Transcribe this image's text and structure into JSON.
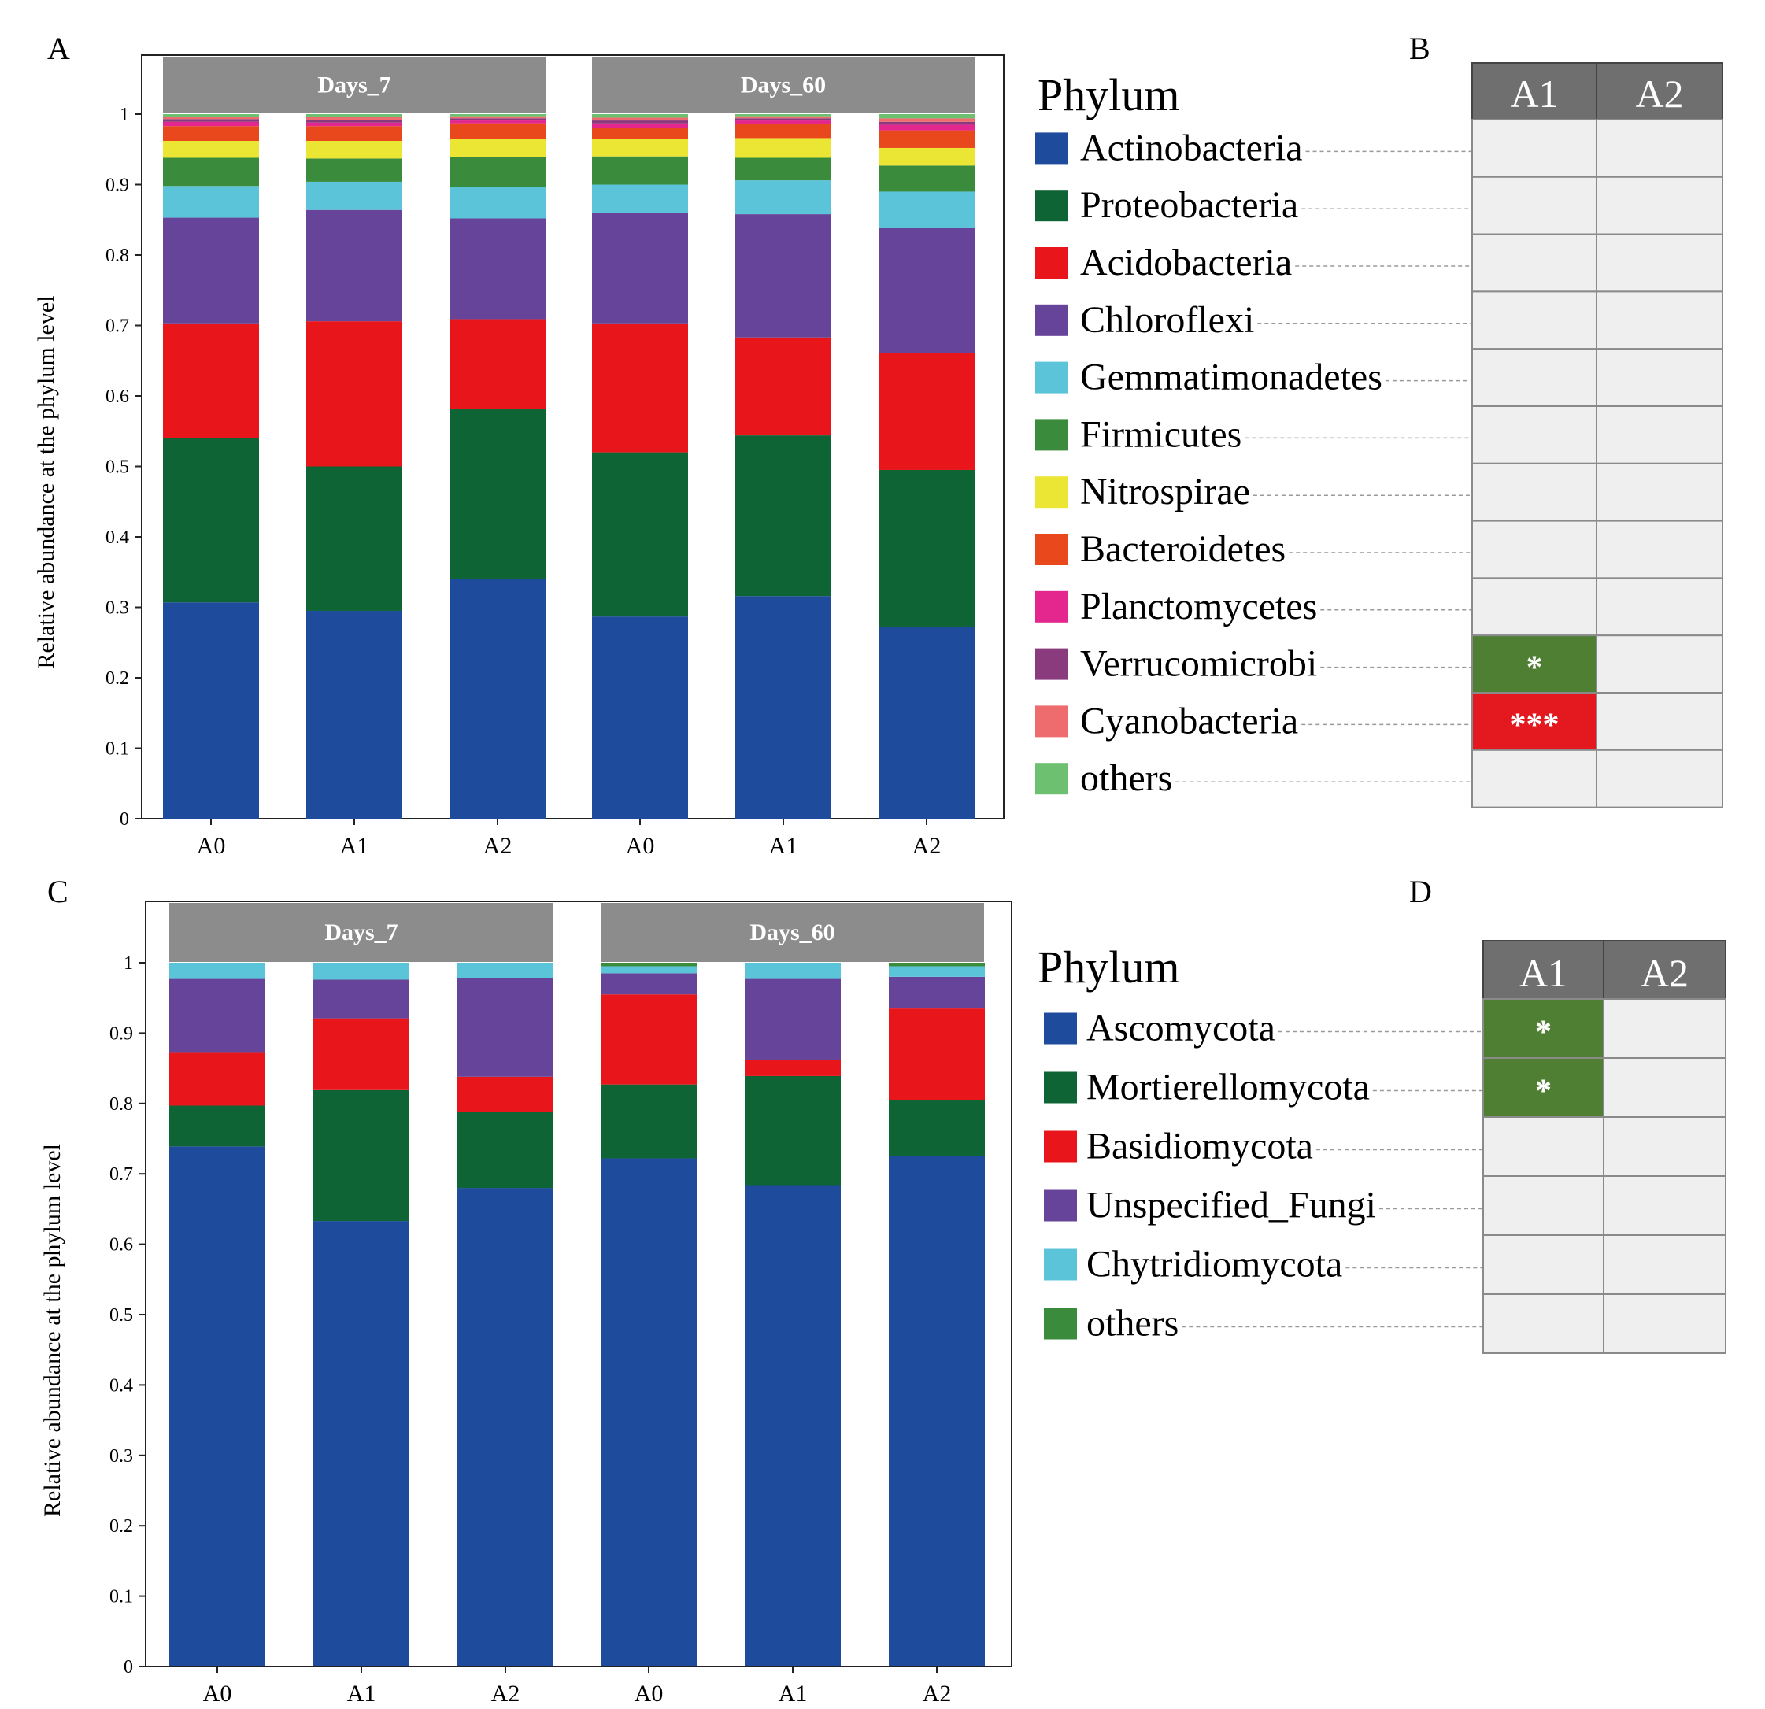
{
  "chart_data": [
    {
      "panel": "A",
      "type": "bar",
      "stacked": true,
      "ylabel": "Relative abundance at the phylum level",
      "ylim": [
        0,
        1
      ],
      "yticks": [
        "0",
        "0.1",
        "0.2",
        "0.3",
        "0.4",
        "0.5",
        "0.6",
        "0.7",
        "0.8",
        "0.9",
        "1"
      ],
      "groups": [
        "Days_7",
        "Days_60"
      ],
      "categories": [
        "A0",
        "A1",
        "A2",
        "A0",
        "A1",
        "A2"
      ],
      "series": [
        {
          "name": "Actinobacteria",
          "color": "#1f4b9c",
          "values": [
            0.307,
            0.295,
            0.34,
            0.287,
            0.316,
            0.272
          ]
        },
        {
          "name": "Proteobacteria",
          "color": "#0f6436",
          "values": [
            0.233,
            0.205,
            0.241,
            0.233,
            0.228,
            0.223
          ]
        },
        {
          "name": "Acidobacteria",
          "color": "#e8161b",
          "values": [
            0.163,
            0.206,
            0.128,
            0.183,
            0.139,
            0.166
          ]
        },
        {
          "name": "Chloroflexi",
          "color": "#66449a",
          "values": [
            0.15,
            0.158,
            0.143,
            0.157,
            0.175,
            0.177
          ]
        },
        {
          "name": "Gemmatimonadetes",
          "color": "#5cc4d8",
          "values": [
            0.045,
            0.04,
            0.045,
            0.04,
            0.048,
            0.052
          ]
        },
        {
          "name": "Firmicutes",
          "color": "#3a8c3c",
          "values": [
            0.04,
            0.033,
            0.042,
            0.04,
            0.032,
            0.037
          ]
        },
        {
          "name": "Nitrospirae",
          "color": "#ebe633",
          "values": [
            0.024,
            0.025,
            0.026,
            0.025,
            0.028,
            0.025
          ]
        },
        {
          "name": "Bacteroidetes",
          "color": "#e8481b",
          "values": [
            0.021,
            0.021,
            0.022,
            0.016,
            0.02,
            0.025
          ]
        },
        {
          "name": "Planctomycetes",
          "color": "#e3278f",
          "values": [
            0.006,
            0.005,
            0.004,
            0.006,
            0.005,
            0.008
          ]
        },
        {
          "name": "Verrucomicrobi",
          "color": "#8a3b7e",
          "values": [
            0.004,
            0.004,
            0.003,
            0.004,
            0.003,
            0.004
          ]
        },
        {
          "name": "Cyanobacteria",
          "color": "#ee6b6e",
          "values": [
            0.003,
            0.004,
            0.003,
            0.004,
            0.003,
            0.005
          ]
        },
        {
          "name": "others",
          "color": "#6cc070",
          "values": [
            0.004,
            0.004,
            0.003,
            0.005,
            0.003,
            0.006
          ]
        }
      ]
    },
    {
      "panel": "C",
      "type": "bar",
      "stacked": true,
      "ylabel": "Relative abundance at the phylum level",
      "ylim": [
        0,
        1
      ],
      "yticks": [
        "0",
        "0.1",
        "0.2",
        "0.3",
        "0.4",
        "0.5",
        "0.6",
        "0.7",
        "0.8",
        "0.9",
        "1"
      ],
      "groups": [
        "Days_7",
        "Days_60"
      ],
      "categories": [
        "A0",
        "A1",
        "A2",
        "A0",
        "A1",
        "A2"
      ],
      "series": [
        {
          "name": "Ascomycota",
          "color": "#1f4b9c",
          "values": [
            0.739,
            0.633,
            0.68,
            0.722,
            0.684,
            0.725
          ]
        },
        {
          "name": "Mortierellomycota",
          "color": "#0f6436",
          "values": [
            0.058,
            0.186,
            0.108,
            0.105,
            0.155,
            0.08
          ]
        },
        {
          "name": "Basidiomycota",
          "color": "#e8161b",
          "values": [
            0.075,
            0.102,
            0.05,
            0.128,
            0.023,
            0.13
          ]
        },
        {
          "name": "Unspecified_Fungi",
          "color": "#66449a",
          "values": [
            0.105,
            0.055,
            0.14,
            0.03,
            0.115,
            0.045
          ]
        },
        {
          "name": "Chytridiomycota",
          "color": "#5cc4d8",
          "values": [
            0.023,
            0.024,
            0.022,
            0.01,
            0.023,
            0.015
          ]
        },
        {
          "name": "others",
          "color": "#3a8c3c",
          "values": [
            0.0,
            0.0,
            0.0,
            0.005,
            0.0,
            0.005
          ]
        }
      ]
    }
  ],
  "panels": {
    "a_label": "A",
    "b_label": "B",
    "c_label": "C",
    "d_label": "D"
  },
  "legend_b": {
    "title": "Phylum",
    "columns": [
      "A1",
      "A2"
    ],
    "rows": [
      {
        "label": "Actinobacteria",
        "a1": "",
        "a2": "",
        "a1_color": "",
        "a2_color": ""
      },
      {
        "label": "Proteobacteria",
        "a1": "",
        "a2": "",
        "a1_color": "",
        "a2_color": ""
      },
      {
        "label": "Acidobacteria",
        "a1": "",
        "a2": "",
        "a1_color": "",
        "a2_color": ""
      },
      {
        "label": "Chloroflexi",
        "a1": "",
        "a2": "",
        "a1_color": "",
        "a2_color": ""
      },
      {
        "label": "Gemmatimonadetes",
        "a1": "",
        "a2": "",
        "a1_color": "",
        "a2_color": ""
      },
      {
        "label": "Firmicutes",
        "a1": "",
        "a2": "",
        "a1_color": "",
        "a2_color": ""
      },
      {
        "label": "Nitrospirae",
        "a1": "",
        "a2": "",
        "a1_color": "",
        "a2_color": ""
      },
      {
        "label": "Bacteroidetes",
        "a1": "",
        "a2": "",
        "a1_color": "",
        "a2_color": ""
      },
      {
        "label": "Planctomycetes",
        "a1": "",
        "a2": "",
        "a1_color": "",
        "a2_color": ""
      },
      {
        "label": "Verrucomicrobi",
        "a1": "*",
        "a2": "",
        "a1_color": "#4e7f32",
        "a2_color": ""
      },
      {
        "label": "Cyanobacteria",
        "a1": "***",
        "a2": "",
        "a1_color": "#e3191f",
        "a2_color": ""
      },
      {
        "label": "others",
        "a1": "",
        "a2": "",
        "a1_color": "",
        "a2_color": ""
      }
    ]
  },
  "legend_d": {
    "title": "Phylum",
    "columns": [
      "A1",
      "A2"
    ],
    "rows": [
      {
        "label": "Ascomycota",
        "a1": "*",
        "a2": "",
        "a1_color": "#4e7f32",
        "a2_color": ""
      },
      {
        "label": "Mortierellomycota",
        "a1": "*",
        "a2": "",
        "a1_color": "#4e7f32",
        "a2_color": ""
      },
      {
        "label": "Basidiomycota",
        "a1": "",
        "a2": "",
        "a1_color": "",
        "a2_color": ""
      },
      {
        "label": "Unspecified_Fungi",
        "a1": "",
        "a2": "",
        "a1_color": "",
        "a2_color": ""
      },
      {
        "label": "Chytridiomycota",
        "a1": "",
        "a2": "",
        "a1_color": "",
        "a2_color": ""
      },
      {
        "label": "others",
        "a1": "",
        "a2": "",
        "a1_color": "",
        "a2_color": ""
      }
    ]
  },
  "colors": {
    "group_header": "#8c8c8c",
    "table_header": "#6f6f6f",
    "table_cell": "#efefef",
    "table_border": "#8a8a8a"
  }
}
